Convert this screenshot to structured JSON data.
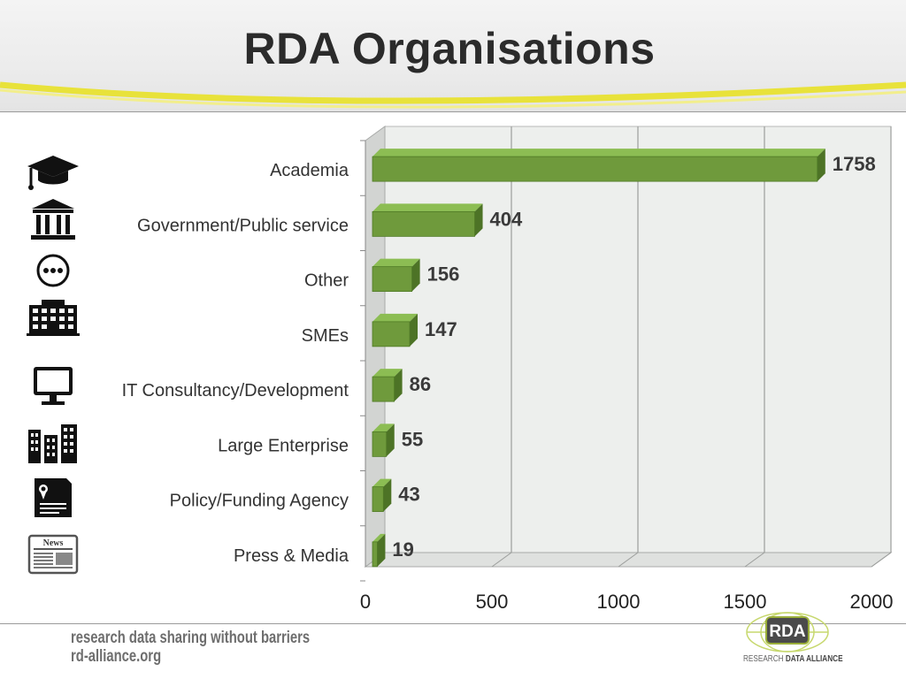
{
  "slide": {
    "title": "RDA Organisations"
  },
  "footer": {
    "tagline": "research data sharing without barriers",
    "url": "rd-alliance.org"
  },
  "logo": {
    "text": "RDA",
    "subtitle_prefix": "RESEARCH",
    "subtitle_main": "DATA ALLIANCE"
  },
  "colors": {
    "bar_front": "#6f9a3c",
    "bar_top": "#8cbd53",
    "bar_side": "#4d7326",
    "plot_bg": "#edefed"
  },
  "icons": [
    "graduation-cap-icon",
    "government-building-icon",
    "more-options-icon",
    "office-building-icon",
    "computer-monitor-icon",
    "city-buildings-icon",
    "certificate-document-icon",
    "newspaper-icon"
  ],
  "chart_data": {
    "type": "bar",
    "orientation": "horizontal",
    "categories": [
      "Academia",
      "Government/Public service",
      "Other",
      "SMEs",
      "IT Consultancy/Development",
      "Large Enterprise",
      "Policy/Funding Agency",
      "Press & Media"
    ],
    "values": [
      1758,
      404,
      156,
      147,
      86,
      55,
      43,
      19
    ],
    "data_labels": [
      "1758",
      "404",
      "156",
      "147",
      "86",
      "55",
      "43",
      "19"
    ],
    "xlim": [
      0,
      2000
    ],
    "xticks": [
      "0",
      "500",
      "1000",
      "1500",
      "2000"
    ],
    "grid": "vertical",
    "legend": "none",
    "style": "3d"
  }
}
